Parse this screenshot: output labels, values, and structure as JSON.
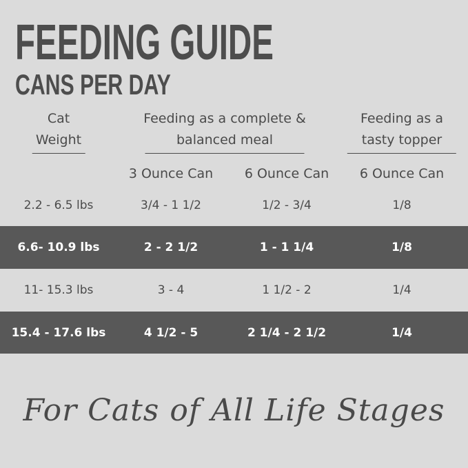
{
  "header": {
    "title": "FEEDING GUIDE",
    "subtitle": "CANS PER DAY"
  },
  "table": {
    "group_headers": [
      [
        "Cat",
        "Weight"
      ],
      [
        "Feeding as a complete &",
        "balanced meal"
      ],
      [
        "Feeding as a",
        "tasty topper"
      ]
    ],
    "column_headers": [
      "3 Ounce Can",
      "6 Ounce Can",
      "6 Ounce Can"
    ],
    "rows": [
      [
        "2.2 - 6.5 lbs",
        "3/4 - 1 1/2",
        "1/2 - 3/4",
        "1/8"
      ],
      [
        "6.6- 10.9 lbs",
        "2 - 2 1/2",
        "1 - 1 1/4",
        "1/8"
      ],
      [
        "11- 15.3 lbs",
        "3 - 4",
        "1 1/2 - 2",
        "1/4"
      ],
      [
        "15.4 - 17.6 lbs",
        "4 1/2 - 5",
        "2 1/4 - 2 1/2",
        "1/4"
      ]
    ]
  },
  "footer": {
    "tagline": "For Cats of All Life Stages"
  }
}
